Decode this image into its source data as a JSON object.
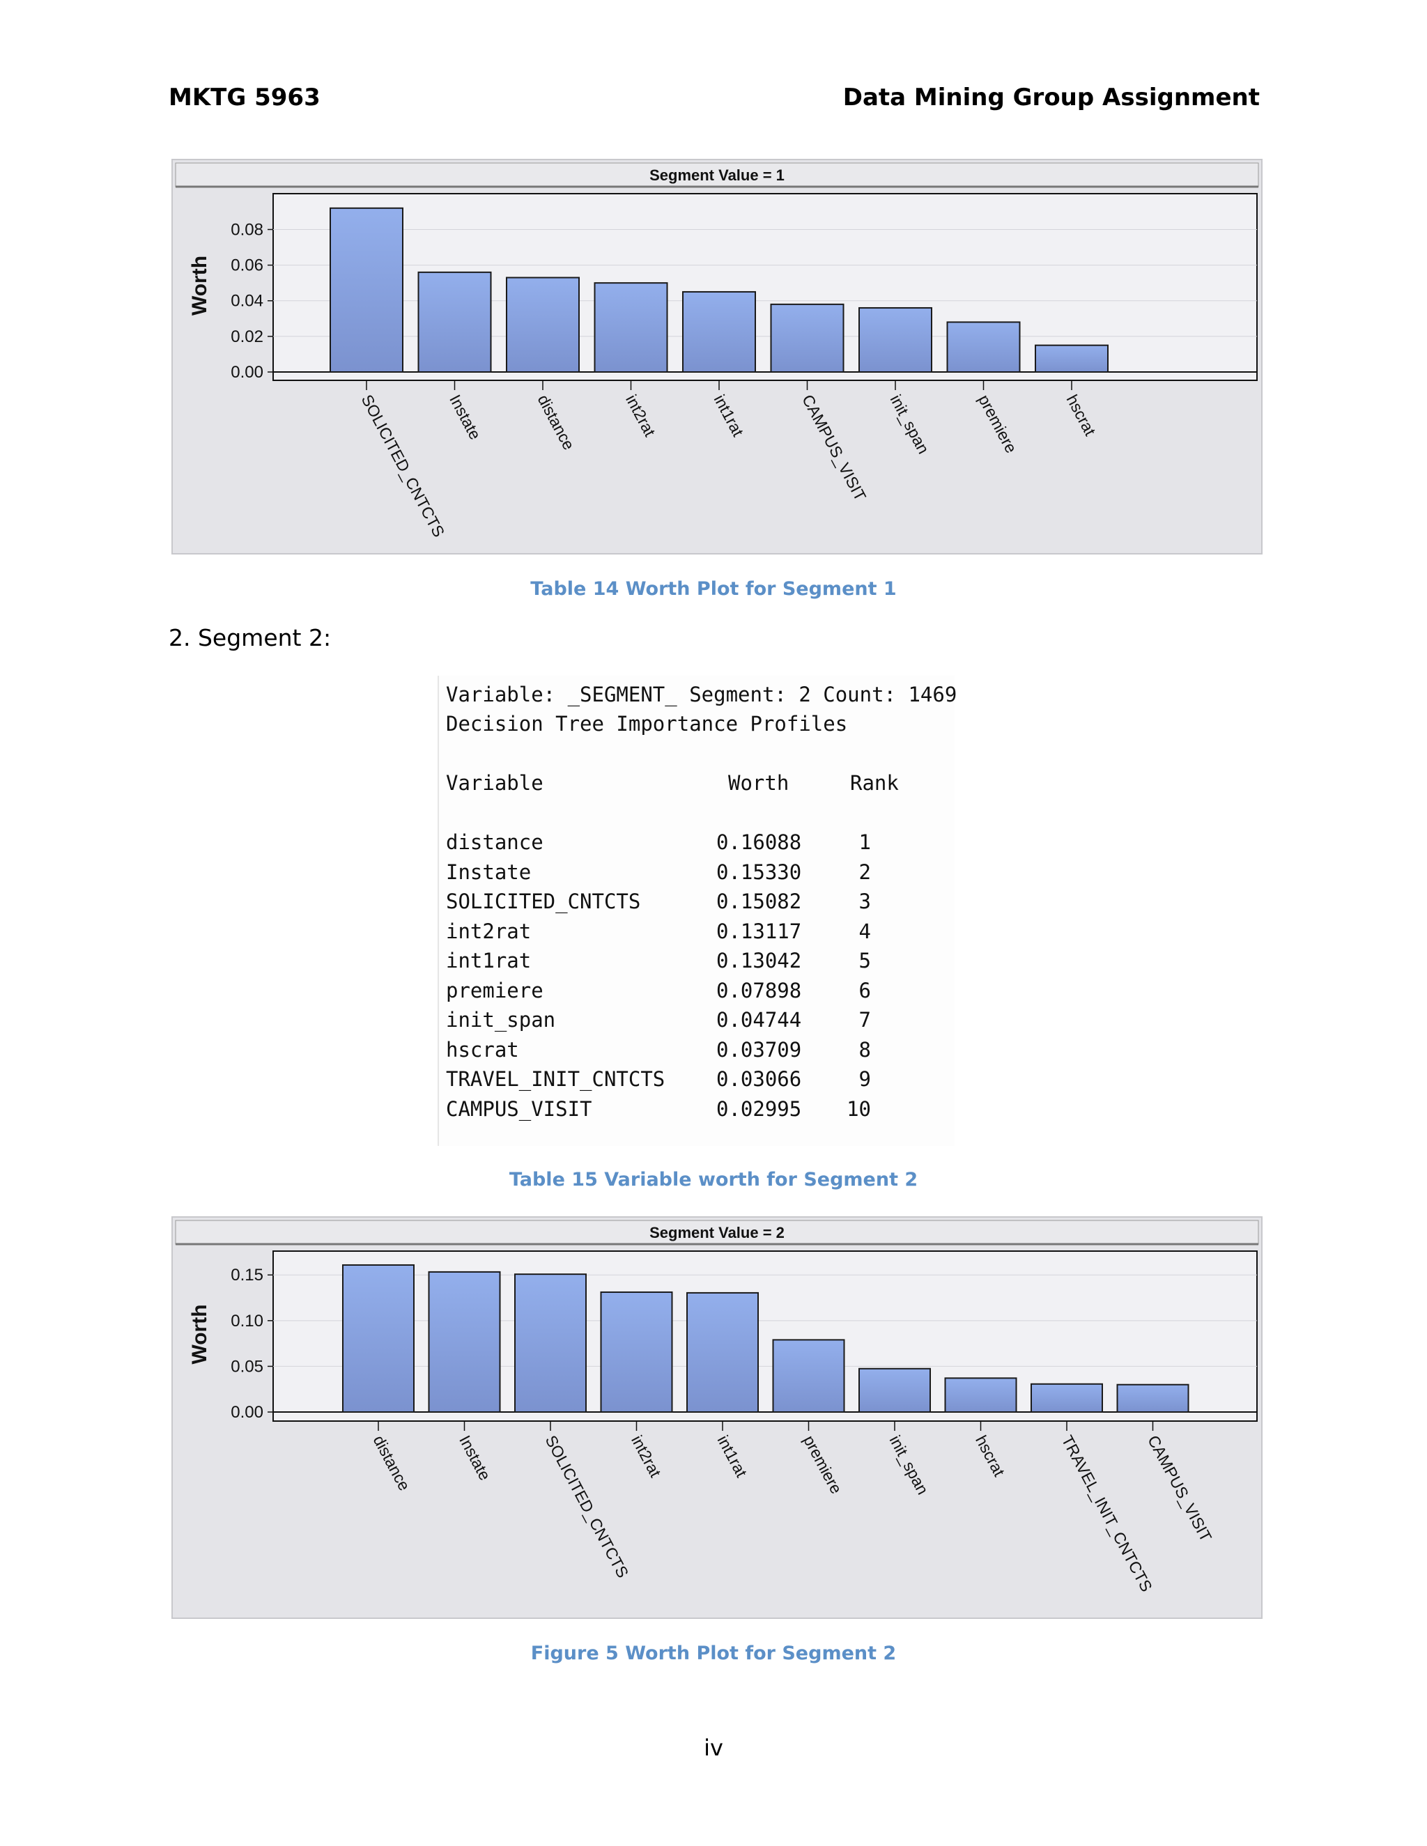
{
  "header": {
    "left": "MKTG 5963",
    "right": "Data Mining Group Assignment"
  },
  "captions": {
    "fig1": "Table 14 Worth Plot for Segment 1",
    "table": "Table 15 Variable worth for Segment 2",
    "fig2": "Figure 5 Worth Plot for Segment 2"
  },
  "section_label": "2. Segment 2:",
  "output_listing": {
    "line1": "Variable: _SEGMENT_ Segment: 2 Count: 1469",
    "line2": "Decision Tree Importance Profiles",
    "headers": {
      "variable": "Variable",
      "worth": "Worth",
      "rank": "Rank"
    },
    "rows": [
      {
        "variable": "distance",
        "worth": "0.16088",
        "rank": "1"
      },
      {
        "variable": "Instate",
        "worth": "0.15330",
        "rank": "2"
      },
      {
        "variable": "SOLICITED_CNTCTS",
        "worth": "0.15082",
        "rank": "3"
      },
      {
        "variable": "int2rat",
        "worth": "0.13117",
        "rank": "4"
      },
      {
        "variable": "int1rat",
        "worth": "0.13042",
        "rank": "5"
      },
      {
        "variable": "premiere",
        "worth": "0.07898",
        "rank": "6"
      },
      {
        "variable": "init_span",
        "worth": "0.04744",
        "rank": "7"
      },
      {
        "variable": "hscrat",
        "worth": "0.03709",
        "rank": "8"
      },
      {
        "variable": "TRAVEL_INIT_CNTCTS",
        "worth": "0.03066",
        "rank": "9"
      },
      {
        "variable": "CAMPUS_VISIT",
        "worth": "0.02995",
        "rank": "10"
      }
    ]
  },
  "page_number": "iv",
  "colors": {
    "bar": "#8ea8e4",
    "caption": "#5b8fc7",
    "panel": "#e4e4e8"
  },
  "chart_data": [
    {
      "type": "bar",
      "title": "Segment Value = 1",
      "ylabel": "Worth",
      "xlabel": "",
      "categories": [
        "SOLICITED_CNTCTS",
        "Instate",
        "distance",
        "int2rat",
        "int1rat",
        "CAMPUS_VISIT",
        "init_span",
        "premiere",
        "hscrat"
      ],
      "values": [
        0.092,
        0.056,
        0.053,
        0.05,
        0.045,
        0.038,
        0.036,
        0.028,
        0.015
      ],
      "yticks": [
        "0.08",
        "0.06",
        "0.04",
        "0.02",
        "0.00"
      ],
      "ytick_values": [
        0.08,
        0.06,
        0.04,
        0.02,
        0.0
      ],
      "ylim": [
        0,
        0.097
      ],
      "grid": true,
      "legend": "none"
    },
    {
      "type": "bar",
      "title": "Segment Value = 2",
      "ylabel": "Worth",
      "xlabel": "",
      "categories": [
        "distance",
        "Instate",
        "SOLICITED_CNTCTS",
        "int2rat",
        "int1rat",
        "premiere",
        "init_span",
        "hscrat",
        "TRAVEL_INIT_CNTCTS",
        "CAMPUS_VISIT"
      ],
      "values": [
        0.16088,
        0.1533,
        0.15082,
        0.13117,
        0.13042,
        0.07898,
        0.04744,
        0.03709,
        0.03066,
        0.02995
      ],
      "yticks": [
        "0.15",
        "0.10",
        "0.05",
        "0.00"
      ],
      "ytick_values": [
        0.15,
        0.1,
        0.05,
        0.0
      ],
      "ylim": [
        0,
        0.17
      ],
      "grid": true,
      "legend": "none"
    }
  ]
}
